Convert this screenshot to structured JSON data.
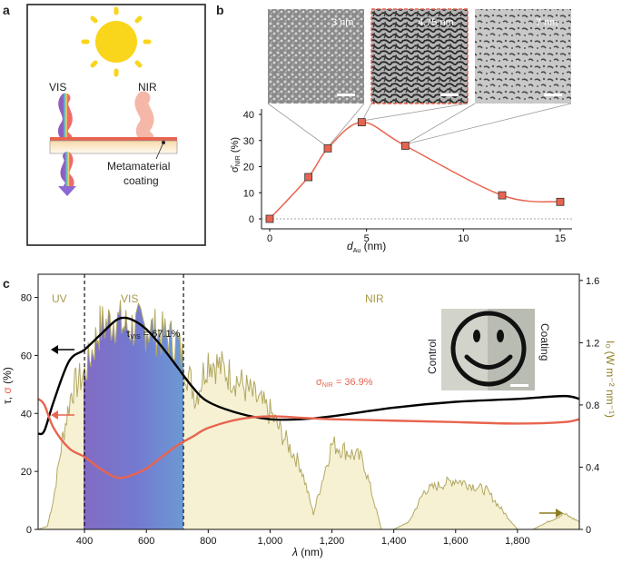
{
  "panels": {
    "a": "a",
    "b": "b",
    "c": "c"
  },
  "panel_a": {
    "vis_label": "VIS",
    "nir_label": "NIR",
    "coating_label_line1": "Metamaterial",
    "coating_label_line2": "coating"
  },
  "panel_b": {
    "sem_labels": [
      "3 nm",
      "4.75 nm",
      "7 nm"
    ]
  },
  "panel_c": {
    "region_uv": "UV",
    "region_vis": "VIS",
    "region_nir": "NIR",
    "tau_annotation": "τ",
    "tau_sub": "VIS",
    "tau_value": " = 67.1%",
    "sigma_annotation": "σ",
    "sigma_sub": "NIR",
    "sigma_value": " = 36.9%",
    "inset_left": "Control",
    "inset_right": "Coating",
    "right_axis_label": "I₀ (W m⁻² nm⁻¹)",
    "colors": {
      "tau": "#000000",
      "sigma": "#e8644f",
      "irradiance": "#b2a862",
      "irradiance_fill": "#f6f1d3"
    }
  },
  "chart_data": [
    {
      "type": "line",
      "title": "",
      "xlabel": "d_Au (nm)",
      "ylabel": "σ̄_NIR (%)",
      "xlim": [
        0,
        15
      ],
      "ylim": [
        0,
        40
      ],
      "xticks": [
        "0",
        "5",
        "10",
        "15"
      ],
      "yticks": [
        "0",
        "10",
        "20",
        "30",
        "40"
      ],
      "series": [
        {
          "name": "σ̄_NIR",
          "x": [
            0,
            2,
            3,
            4.75,
            7,
            12,
            15
          ],
          "y": [
            0,
            16,
            27,
            37,
            28,
            9,
            6.5
          ]
        }
      ],
      "grid": false
    },
    {
      "type": "line",
      "title": "",
      "xlabel": "λ (nm)",
      "ylabel": "τ, σ (%)",
      "xlim": [
        250,
        2000
      ],
      "ylim": [
        0,
        88
      ],
      "xticks": [
        "400",
        "600",
        "800",
        "1,000",
        "1,200",
        "1,400",
        "1,600",
        "1,800"
      ],
      "yticks": [
        "0",
        "20",
        "40",
        "60",
        "80"
      ],
      "y2label": "I₀ (W m⁻² nm⁻¹)",
      "y2lim": [
        0,
        1.64
      ],
      "y2ticks": [
        "0",
        "0.4",
        "0.8",
        "1.2",
        "1.6"
      ],
      "series": [
        {
          "name": "τ",
          "x": [
            250,
            270,
            300,
            350,
            400,
            450,
            500,
            530,
            560,
            600,
            650,
            700,
            750,
            800,
            900,
            1000,
            1100,
            1200,
            1400,
            1600,
            1800,
            1950,
            2000
          ],
          "y": [
            33,
            34,
            44,
            58,
            62,
            67,
            72,
            73,
            72,
            69,
            63,
            56,
            49,
            44,
            40,
            38,
            38,
            39,
            42,
            44,
            45,
            46,
            45
          ]
        },
        {
          "name": "σ",
          "x": [
            250,
            270,
            300,
            350,
            400,
            450,
            500,
            530,
            560,
            600,
            650,
            700,
            750,
            800,
            900,
            1000,
            1100,
            1200,
            1400,
            1600,
            1800,
            1950,
            2000
          ],
          "y": [
            45,
            43,
            35,
            28,
            25,
            21,
            18,
            18,
            19,
            21,
            25,
            29,
            32,
            35,
            38,
            39,
            38.5,
            38,
            37.5,
            37,
            36.5,
            37,
            38
          ]
        },
        {
          "name": "I₀",
          "x": [
            250,
            280,
            300,
            330,
            360,
            400,
            450,
            500,
            530,
            600,
            700,
            760,
            800,
            900,
            1000,
            1100,
            1140,
            1200,
            1300,
            1360,
            1380,
            1400,
            1450,
            1500,
            1600,
            1700,
            1780,
            1800,
            1850,
            1950,
            2000
          ],
          "y": [
            0,
            0.02,
            0.2,
            0.6,
            0.9,
            1.0,
            1.3,
            1.35,
            1.3,
            1.3,
            1.2,
            0.85,
            1.1,
            0.95,
            0.75,
            0.4,
            0.1,
            0.55,
            0.45,
            0.0,
            0.0,
            0.0,
            0.05,
            0.25,
            0.32,
            0.25,
            0.05,
            0.0,
            0.0,
            0.1,
            0.05
          ]
        }
      ]
    }
  ]
}
